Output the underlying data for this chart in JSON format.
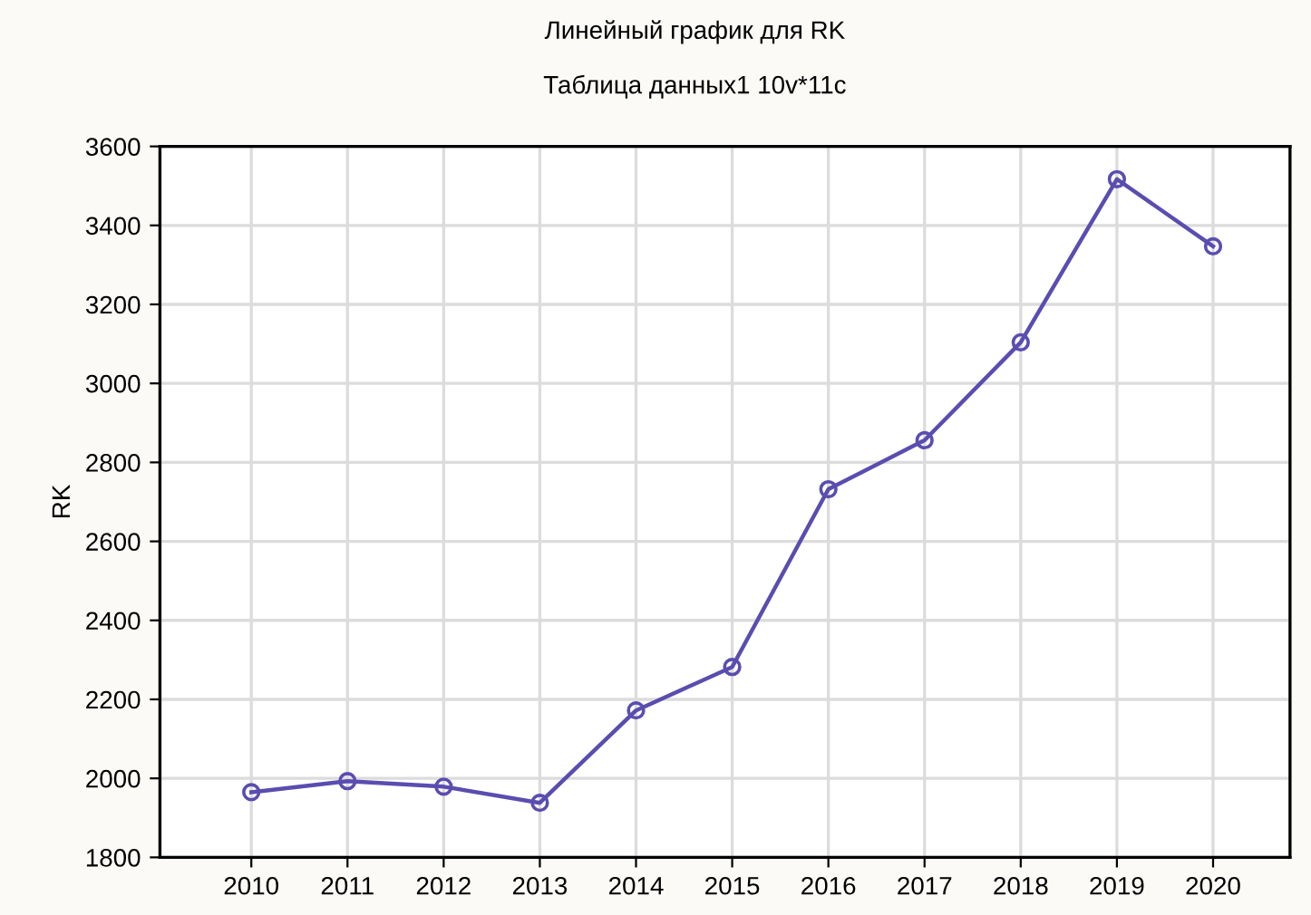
{
  "chart_data": {
    "type": "line",
    "title": "Линейный график для RK",
    "subtitle": "Таблица данных1 10v*11c",
    "ylabel": "RK",
    "categories": [
      "2010",
      "2011",
      "2012",
      "2013",
      "2014",
      "2015",
      "2016",
      "2017",
      "2018",
      "2019",
      "2020"
    ],
    "series": [
      {
        "color": "#5a4db0",
        "values": [
          1965,
          1993,
          1979,
          1938,
          2172,
          2282,
          2732,
          2856,
          3104,
          3517,
          3347
        ]
      }
    ],
    "ylim": [
      1800,
      3600
    ],
    "yticks": [
      1800,
      2000,
      2200,
      2400,
      2600,
      2800,
      3000,
      3200,
      3400,
      3600
    ],
    "grid": true,
    "marker": "circle",
    "line_style": "solid"
  }
}
